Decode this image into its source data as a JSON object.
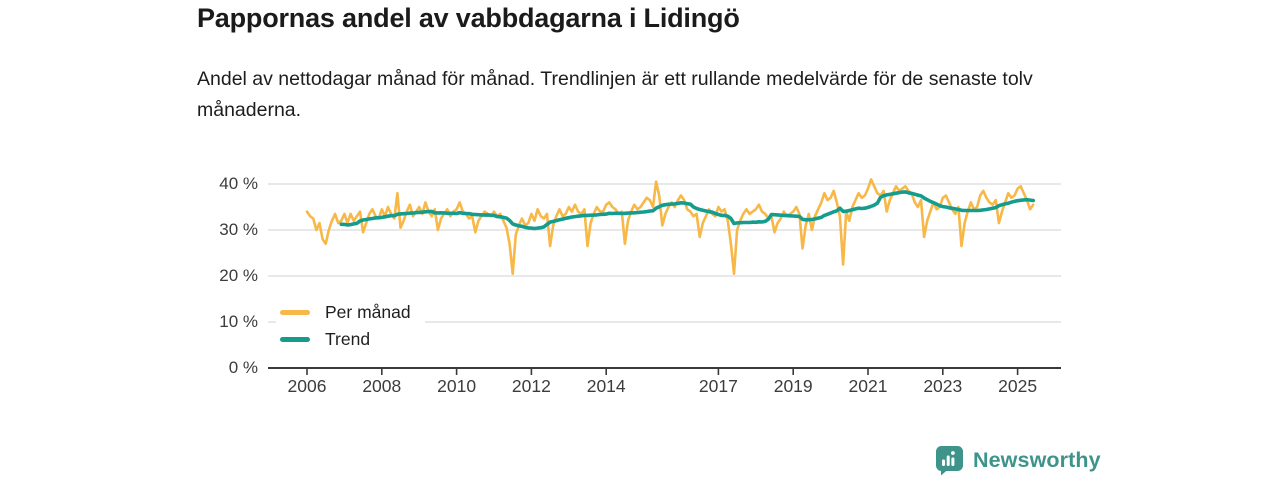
{
  "header": {
    "title": "Pappornas andel av vabbdagarna i Lidingö",
    "subtitle": "Andel av nettodagar månad för månad. Trendlinjen är ett rullande medelvärde för de senaste tolv månaderna."
  },
  "chart_data": {
    "type": "line",
    "title": "Pappornas andel av vabbdagarna i Lidingö",
    "x_unit": "month",
    "x_start": "2006-01",
    "x_end": "2025-06",
    "y_unit": "%",
    "ylim": [
      0,
      43
    ],
    "grid": true,
    "legend_position": "inside-bottom-left",
    "y_ticks": [
      {
        "label": "40 %",
        "value": 40
      },
      {
        "label": "30 %",
        "value": 30
      },
      {
        "label": "20 %",
        "value": 20
      },
      {
        "label": "10 %",
        "value": 10
      },
      {
        "label": "0 %",
        "value": 0
      }
    ],
    "x_ticks": [
      2006,
      2008,
      2010,
      2012,
      2014,
      2017,
      2019,
      2021,
      2023,
      2025
    ],
    "series": [
      {
        "name": "Per månad",
        "color": "#F7B848",
        "line_width": 2.6,
        "values": [
          34,
          33,
          32.5,
          30,
          31.5,
          28,
          27,
          30,
          32,
          33.5,
          31.5,
          32,
          33.5,
          31.5,
          33.5,
          32,
          33,
          34,
          29.5,
          31.5,
          33.5,
          34.5,
          33,
          32.5,
          34.5,
          33,
          35,
          33.5,
          32.5,
          38,
          30.5,
          32,
          34,
          35.5,
          33,
          34,
          35,
          33.5,
          36,
          34,
          33,
          34.5,
          30,
          32.5,
          33.5,
          34.5,
          33,
          34,
          34.5,
          36,
          34,
          33.5,
          32.5,
          33,
          29.5,
          32,
          33,
          34,
          33.5,
          33,
          34,
          33,
          33.5,
          32,
          30.5,
          27,
          20.5,
          29,
          31,
          32.5,
          31,
          31.5,
          33.5,
          32,
          34.5,
          33,
          32.5,
          33.5,
          26.5,
          31,
          33,
          34.5,
          33,
          33.5,
          35,
          34,
          35.5,
          34,
          33.5,
          34.5,
          26.5,
          31.5,
          33.5,
          35,
          34,
          34,
          35.5,
          36,
          35,
          34.5,
          33.5,
          34,
          27,
          32,
          34,
          35.5,
          34.5,
          35,
          36,
          37,
          36.5,
          35,
          40.5,
          37.5,
          31,
          33.5,
          35,
          36,
          35,
          36.5,
          37.5,
          36.5,
          34.5,
          34,
          33,
          33.5,
          28.5,
          31.5,
          33,
          34.5,
          33.5,
          33,
          35,
          34,
          34.5,
          32,
          27,
          20.5,
          30,
          32,
          33.5,
          34.5,
          33.5,
          34,
          34.5,
          35.5,
          34,
          33.5,
          32.5,
          33,
          29.5,
          31.5,
          32.5,
          34,
          33,
          33.5,
          34,
          35,
          33.5,
          26,
          31,
          33.5,
          30,
          33,
          34.5,
          36,
          38,
          36.5,
          37,
          38.5,
          36,
          33,
          22.5,
          34,
          32,
          35,
          36.5,
          38,
          37,
          37.5,
          39,
          41,
          39.5,
          38,
          37.5,
          38.5,
          34,
          36.5,
          38,
          39.5,
          38.5,
          39,
          39.5,
          38.5,
          38,
          36,
          35,
          36.5,
          28.5,
          32,
          34,
          36,
          34.5,
          35,
          37,
          37.5,
          36,
          34.5,
          33.5,
          35,
          26.5,
          31.5,
          34,
          36,
          34.5,
          35,
          37.5,
          38.5,
          37,
          36,
          35.5,
          36.5,
          31.5,
          34,
          36,
          38,
          37,
          37.5,
          39,
          39.5,
          38,
          36.5,
          34.5,
          35.5
        ]
      },
      {
        "name": "Trend",
        "color": "#159C8C",
        "line_width": 3.6,
        "derived_from": "Per månad",
        "method": "rolling_mean",
        "window": 12
      }
    ]
  },
  "legend": {
    "items": [
      {
        "label": "Per månad",
        "color": "#F7B848"
      },
      {
        "label": "Trend",
        "color": "#159C8C"
      }
    ]
  },
  "branding": {
    "name": "Newsworthy",
    "color": "#3E948A"
  }
}
